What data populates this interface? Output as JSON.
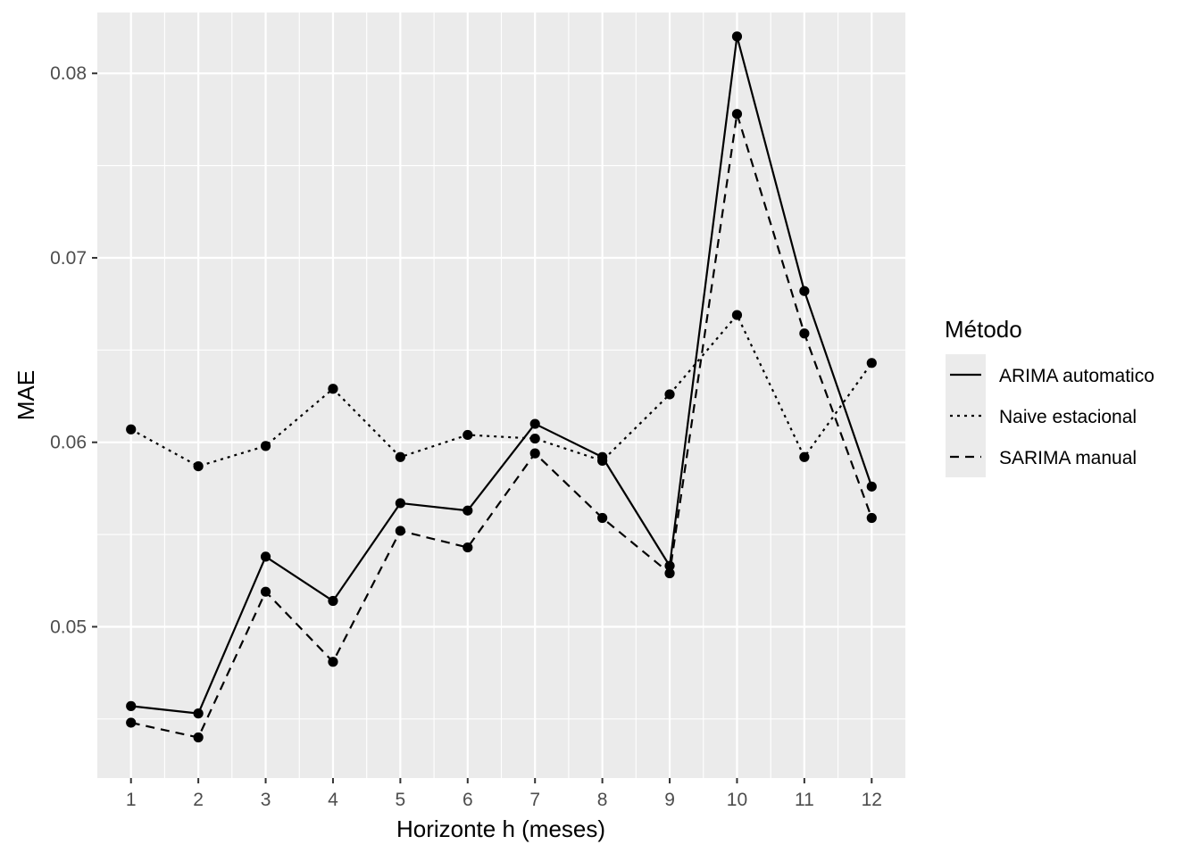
{
  "chart_data": {
    "type": "line",
    "title": "",
    "xlabel": "Horizonte h (meses)",
    "ylabel": "MAE",
    "x": [
      1,
      2,
      3,
      4,
      5,
      6,
      7,
      8,
      9,
      10,
      11,
      12
    ],
    "xticks": [
      "1",
      "2",
      "3",
      "4",
      "5",
      "6",
      "7",
      "8",
      "9",
      "10",
      "11",
      "12"
    ],
    "yticks": [
      "0.05",
      "0.06",
      "0.07",
      "0.08"
    ],
    "ytick_values": [
      0.05,
      0.06,
      0.07,
      0.08
    ],
    "xlim": [
      0.5,
      12.5
    ],
    "ylim": [
      0.0418,
      0.0833
    ],
    "grid": true,
    "legend": {
      "title": "Método",
      "placement": "right"
    },
    "series": [
      {
        "name": "ARIMA automatico",
        "linetype": "solid",
        "values": [
          0.0457,
          0.0453,
          0.0538,
          0.0514,
          0.0567,
          0.0563,
          0.061,
          0.0592,
          0.0533,
          0.082,
          0.0682,
          0.0576
        ]
      },
      {
        "name": "Naive estacional",
        "linetype": "dotted",
        "values": [
          0.0607,
          0.0587,
          0.0598,
          0.0629,
          0.0592,
          0.0604,
          0.0602,
          0.059,
          0.0626,
          0.0669,
          0.0592,
          0.0643
        ]
      },
      {
        "name": "SARIMA manual",
        "linetype": "dashed",
        "values": [
          0.0448,
          0.044,
          0.0519,
          0.0481,
          0.0552,
          0.0543,
          0.0594,
          0.0559,
          0.0529,
          0.0778,
          0.0659,
          0.0559
        ]
      }
    ],
    "colors": {
      "panel": "#ebebeb",
      "grid": "#ffffff",
      "line": "#000000",
      "tick_text": "#4d4d4d",
      "axis_title": "#000000"
    }
  }
}
